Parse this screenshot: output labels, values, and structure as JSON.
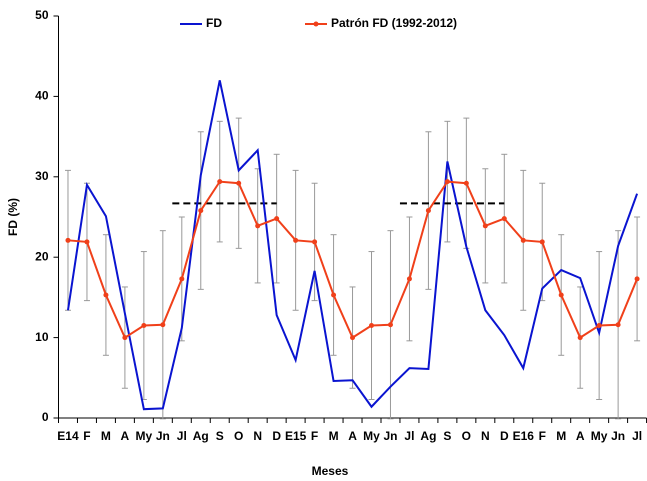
{
  "chart_data": {
    "type": "line",
    "categories": [
      "E14",
      "F",
      "M",
      "A",
      "My",
      "Jn",
      "Jl",
      "Ag",
      "S",
      "O",
      "N",
      "D",
      "E15",
      "F",
      "M",
      "A",
      "My",
      "Jn",
      "Jl",
      "Ag",
      "S",
      "O",
      "N",
      "D",
      "E16",
      "F",
      "M",
      "A",
      "My",
      "Jn",
      "Jl"
    ],
    "series": [
      {
        "name": "FD",
        "color": "#0a14d0",
        "values": [
          13.4,
          29.0,
          25.1,
          13.0,
          1.1,
          1.2,
          11.2,
          30.2,
          42.0,
          30.8,
          33.3,
          12.8,
          7.2,
          18.3,
          4.6,
          4.7,
          1.4,
          3.9,
          6.2,
          6.1,
          31.9,
          21.3,
          13.4,
          10.3,
          6.2,
          16.1,
          18.4,
          17.4,
          10.6,
          21.4,
          27.9
        ]
      },
      {
        "name": "Patrón FD (1992-2012)",
        "color": "#f0401a",
        "values": [
          22.1,
          21.9,
          15.3,
          10.0,
          11.5,
          11.6,
          17.3,
          25.8,
          29.4,
          29.2,
          23.9,
          24.8,
          22.1,
          21.9,
          15.3,
          10.0,
          11.5,
          11.6,
          17.3,
          25.8,
          29.4,
          29.2,
          23.9,
          24.8,
          22.1,
          21.9,
          15.3,
          10.0,
          11.5,
          11.6,
          17.3
        ],
        "errors": [
          8.7,
          7.3,
          7.5,
          6.3,
          9.2,
          11.7,
          7.7,
          9.8,
          7.5,
          8.1,
          7.1,
          8.0,
          8.7,
          7.3,
          7.5,
          6.3,
          9.2,
          11.7,
          7.7,
          9.8,
          7.5,
          8.1,
          7.1,
          8.0,
          8.7,
          7.3,
          7.5,
          6.3,
          9.2,
          11.7,
          7.7
        ]
      }
    ],
    "reference_lines": [
      {
        "value": 26.7,
        "start": 6,
        "end": 11
      },
      {
        "value": 26.7,
        "start": 18,
        "end": 23
      }
    ],
    "xlabel": "Meses",
    "ylabel": "FD (%)",
    "ylim": [
      0,
      50
    ],
    "yticks": [
      0,
      10,
      20,
      30,
      40,
      50
    ],
    "grid": false,
    "legend": "top"
  }
}
